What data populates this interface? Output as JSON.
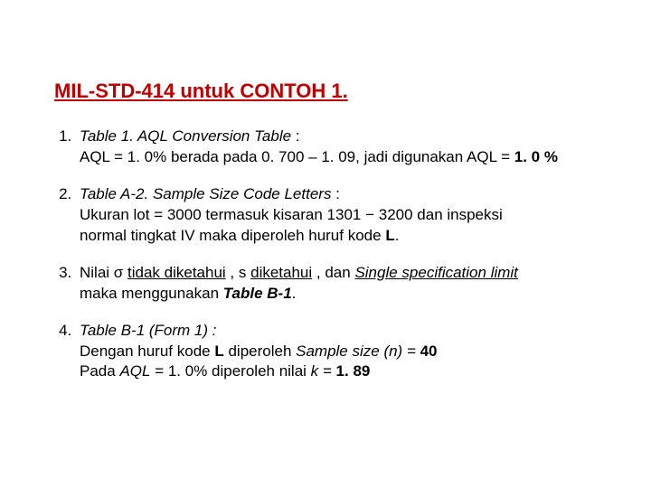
{
  "title": "MIL-STD-414 untuk CONTOH 1.",
  "items": {
    "i1": {
      "table_ref": "Table 1. AQL Conversion Table",
      "line2_a": "AQL = 1. 0%  berada pada 0. 700 – 1. 09, jadi digunakan AQL = ",
      "line2_b": "1. 0 %"
    },
    "i2": {
      "table_ref": "Table A-2. Sample Size Code Letters",
      "line2": "Ukuran lot  = 3000  termasuk kisaran  1301 − 3200 dan inspeksi",
      "line3_a": "normal tingkat IV maka diperoleh huruf kode ",
      "line3_b": "L",
      "line3_c": "."
    },
    "i3": {
      "a": "Nilai σ ",
      "b": "tidak diketahui",
      "c": " , s  ",
      "d": "diketahui",
      "e": " , dan ",
      "f": "Single specification limit",
      "g": "maka menggunakan ",
      "h": "Table B-1",
      "i": "."
    },
    "i4": {
      "a": "Table B-1 (Form 1) :",
      "b1": "Dengan huruf kode ",
      "b2": "L",
      "b3": " diperoleh ",
      "b4": "Sample size (n) =",
      "b5": " 40",
      "c1": "Pada ",
      "c2": "AQL",
      "c3": " = 1. 0% diperoleh nilai ",
      "c4": "k = ",
      "c5": "1. 89"
    }
  }
}
